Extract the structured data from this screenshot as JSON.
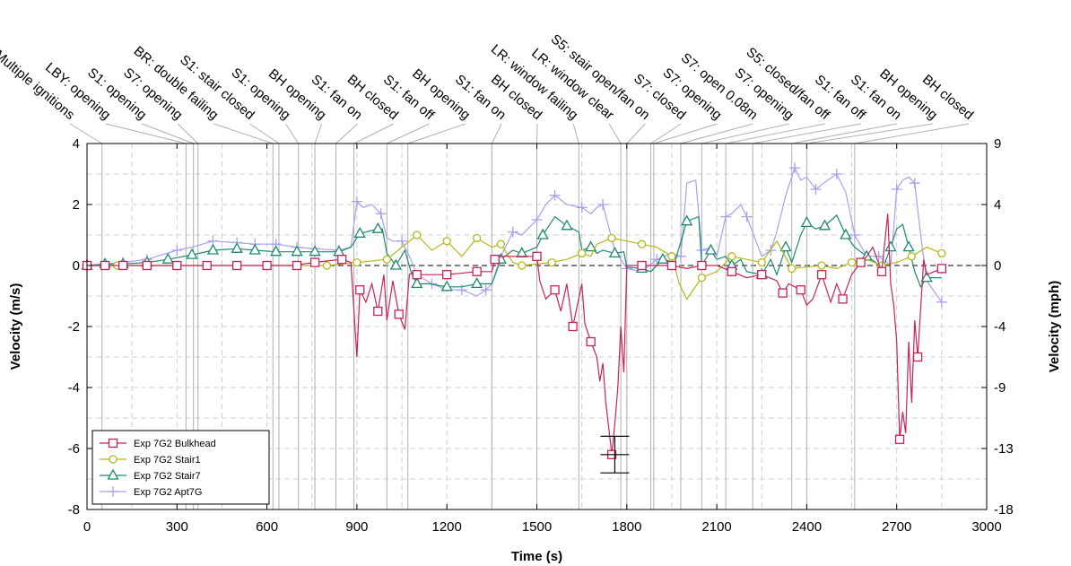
{
  "chart_data": {
    "type": "line",
    "xlabel": "Time (s)",
    "ylabel_left": "Velocity (m/s)",
    "ylabel_right": "Velocity (mph)",
    "xlim": [
      0,
      3000
    ],
    "ylim": [
      -8,
      4
    ],
    "x_ticks": [
      0,
      300,
      600,
      900,
      1200,
      1500,
      1800,
      2100,
      2400,
      2700,
      3000
    ],
    "y_ticks_left": [
      -8,
      -6,
      -4,
      -2,
      0,
      2,
      4
    ],
    "y_ticks_right": [
      "9",
      "4",
      "0",
      "-4",
      "-9",
      "-13",
      "-18"
    ],
    "grid": true,
    "legend_position": "bottom-left",
    "zero_line": "dashed",
    "series": [
      {
        "name": "Exp 7G2 Bulkhead",
        "color": "#c8225a",
        "marker": "square",
        "x": [
          0,
          60,
          120,
          200,
          300,
          400,
          500,
          600,
          700,
          720,
          760,
          800,
          850,
          880,
          900,
          910,
          930,
          950,
          970,
          990,
          1000,
          1020,
          1040,
          1060,
          1075,
          1090,
          1100,
          1200,
          1300,
          1350,
          1360,
          1380,
          1500,
          1510,
          1530,
          1560,
          1580,
          1600,
          1620,
          1650,
          1660,
          1680,
          1700,
          1710,
          1720,
          1730,
          1750,
          1760,
          1770,
          1780,
          1790,
          1800,
          1850,
          1900,
          1950,
          2000,
          2050,
          2100,
          2150,
          2200,
          2250,
          2300,
          2320,
          2340,
          2380,
          2400,
          2420,
          2450,
          2480,
          2500,
          2520,
          2550,
          2580,
          2600,
          2620,
          2650,
          2670,
          2680,
          2690,
          2700,
          2710,
          2720,
          2730,
          2740,
          2750,
          2760,
          2770,
          2790,
          2800,
          2850
        ],
        "y": [
          0,
          0,
          0,
          0,
          0,
          0,
          0,
          0,
          0,
          0.05,
          0.1,
          0.15,
          0.2,
          0.1,
          -3.0,
          -0.8,
          -1.2,
          -0.6,
          -1.5,
          -0.3,
          -1.8,
          -0.5,
          -1.6,
          -2.1,
          -0.3,
          -0.2,
          -0.3,
          -0.3,
          -0.2,
          -0.2,
          0.2,
          0.3,
          0.3,
          -0.5,
          -1.1,
          -0.8,
          -1.5,
          -0.6,
          -2.0,
          -0.6,
          -1.9,
          -2.5,
          -3.0,
          -3.8,
          -3.2,
          -4.5,
          -6.2,
          -5.2,
          -4.0,
          -2.0,
          -3.5,
          0,
          0,
          0,
          0,
          -0.1,
          0,
          0,
          -0.2,
          -0.4,
          -0.3,
          -0.5,
          -0.9,
          -0.6,
          -0.8,
          -1.3,
          -1.1,
          -0.3,
          -1.2,
          -0.6,
          -1.1,
          -0.3,
          0.1,
          0.3,
          0.6,
          -0.2,
          1.7,
          -0.6,
          -1.3,
          -2.5,
          -5.7,
          -4.8,
          -5.5,
          -2.5,
          -4.5,
          -1.8,
          -3.0,
          0.2,
          -0.3,
          -0.1
        ]
      },
      {
        "name": "Exp 7G2 Stair1",
        "color": "#b5b81c",
        "marker": "circle",
        "x": [
          0,
          100,
          200,
          300,
          400,
          500,
          600,
          700,
          800,
          900,
          1000,
          1050,
          1100,
          1150,
          1200,
          1250,
          1300,
          1350,
          1380,
          1420,
          1450,
          1500,
          1550,
          1600,
          1650,
          1680,
          1700,
          1750,
          1800,
          1850,
          1900,
          1950,
          1975,
          2000,
          2050,
          2100,
          2150,
          2200,
          2250,
          2300,
          2350,
          2400,
          2450,
          2500,
          2550,
          2600,
          2650,
          2700,
          2750,
          2800,
          2850
        ],
        "y": [
          0,
          0,
          0,
          0,
          0,
          0,
          0,
          0,
          0,
          0.1,
          0.2,
          0.6,
          1.0,
          0.5,
          0.8,
          0.3,
          0.9,
          0.6,
          0.7,
          0.1,
          0.0,
          0.05,
          0.1,
          0.2,
          0.4,
          0.3,
          0.7,
          0.9,
          0.8,
          0.7,
          0.6,
          0.3,
          -0.6,
          -1.1,
          -0.4,
          -0.2,
          0.3,
          0.2,
          0.1,
          0.8,
          -0.1,
          -0.05,
          0.0,
          -0.1,
          0.1,
          0.2,
          0.0,
          0.1,
          0.3,
          0.6,
          0.4
        ]
      },
      {
        "name": "Exp 7G2 Stair7",
        "color": "#1e8a6e",
        "marker": "triangle",
        "x": [
          0,
          60,
          120,
          200,
          270,
          350,
          420,
          500,
          560,
          630,
          700,
          760,
          840,
          880,
          910,
          970,
          985,
          1000,
          1030,
          1060,
          1080,
          1100,
          1140,
          1200,
          1250,
          1300,
          1350,
          1380,
          1420,
          1450,
          1500,
          1520,
          1560,
          1600,
          1640,
          1650,
          1680,
          1700,
          1720,
          1760,
          1790,
          1800,
          1850,
          1880,
          1920,
          1960,
          2000,
          2040,
          2050,
          2080,
          2100,
          2130,
          2150,
          2180,
          2200,
          2250,
          2280,
          2300,
          2330,
          2350,
          2380,
          2400,
          2430,
          2460,
          2500,
          2530,
          2560,
          2600,
          2630,
          2650,
          2680,
          2700,
          2720,
          2740,
          2760,
          2780,
          2800,
          2850
        ],
        "y": [
          0,
          0.05,
          0.05,
          0.1,
          0.2,
          0.35,
          0.5,
          0.55,
          0.5,
          0.45,
          0.45,
          0.45,
          0.45,
          0.6,
          1.05,
          1.2,
          1.2,
          0.4,
          0.0,
          0.5,
          -0.2,
          -0.6,
          -0.6,
          -0.7,
          -0.7,
          -0.6,
          -0.6,
          0.2,
          0.5,
          0.4,
          0.6,
          1.0,
          1.6,
          1.3,
          1.1,
          0.5,
          0.6,
          0.4,
          0.5,
          0.4,
          0.45,
          -0.05,
          -0.1,
          -0.2,
          0.2,
          0.1,
          1.45,
          1.6,
          0.0,
          0.5,
          0.2,
          0.3,
          0.0,
          0.2,
          -0.2,
          -0.3,
          0.2,
          -0.3,
          0.6,
          0.1,
          1.0,
          1.4,
          1.2,
          1.3,
          1.65,
          1.0,
          0.6,
          0.3,
          0.1,
          -0.2,
          0.6,
          1.2,
          1.35,
          0.6,
          -0.2,
          -0.7,
          -0.4,
          -0.4
        ]
      },
      {
        "name": "Exp 7G2 Apt7G",
        "color": "#a8a0f0",
        "marker": "plus",
        "x": [
          0,
          60,
          120,
          200,
          300,
          350,
          420,
          500,
          560,
          630,
          700,
          760,
          840,
          880,
          900,
          920,
          950,
          980,
          1000,
          1020,
          1050,
          1080,
          1100,
          1150,
          1200,
          1250,
          1300,
          1330,
          1350,
          1380,
          1420,
          1450,
          1500,
          1530,
          1560,
          1600,
          1650,
          1680,
          1700,
          1720,
          1760,
          1800,
          1850,
          1900,
          1950,
          1980,
          2000,
          2030,
          2050,
          2080,
          2100,
          2130,
          2150,
          2180,
          2200,
          2250,
          2280,
          2300,
          2330,
          2360,
          2380,
          2400,
          2430,
          2470,
          2500,
          2530,
          2560,
          2600,
          2640,
          2680,
          2700,
          2720,
          2740,
          2760,
          2780,
          2800,
          2850
        ],
        "y": [
          0,
          0.05,
          0.1,
          0.2,
          0.5,
          0.6,
          0.8,
          0.75,
          0.7,
          0.7,
          0.6,
          0.55,
          0.5,
          0.6,
          2.1,
          1.9,
          2.0,
          1.7,
          0.9,
          0.8,
          0.8,
          0.2,
          -0.3,
          -0.6,
          -0.8,
          -0.8,
          -1.0,
          -0.8,
          -0.6,
          0.3,
          1.1,
          1.0,
          1.5,
          2.0,
          2.3,
          2.0,
          1.9,
          1.7,
          1.9,
          2.0,
          0.5,
          -0.1,
          -0.2,
          0.2,
          0.4,
          0.3,
          2.7,
          2.8,
          0.5,
          0.6,
          0.3,
          1.6,
          1.7,
          2.0,
          1.6,
          0.3,
          0.5,
          1.1,
          2.3,
          3.2,
          2.8,
          2.9,
          2.5,
          2.8,
          3.0,
          2.4,
          1.0,
          0.3,
          0.3,
          0.0,
          2.5,
          2.8,
          2.9,
          2.7,
          1.0,
          -0.5,
          -1.2
        ]
      }
    ],
    "error_bar": {
      "x": 1760,
      "y_low": -6.8,
      "y_mid": -6.2,
      "y_high": -5.6
    },
    "annotations": [
      {
        "label": "Multiple ignitions",
        "x": 50
      },
      {
        "label": "LBY: opening",
        "x": 330
      },
      {
        "label": "S1: opening",
        "x": 355
      },
      {
        "label": "S7: opening",
        "x": 370
      },
      {
        "label": "BR: double failing",
        "x": 620
      },
      {
        "label": "S1: stair closed",
        "x": 640
      },
      {
        "label": "S1: opening",
        "x": 705
      },
      {
        "label": "BH opening",
        "x": 760
      },
      {
        "label": "S1: fan on",
        "x": 830
      },
      {
        "label": "BH closed",
        "x": 890
      },
      {
        "label": "S1: fan off",
        "x": 1000
      },
      {
        "label": "BH opening",
        "x": 1070
      },
      {
        "label": "S1: fan on",
        "x": 1350
      },
      {
        "label": "BH closed",
        "x": 1500
      },
      {
        "label": "LR: window failing",
        "x": 1640
      },
      {
        "label": "LR: window clear",
        "x": 1780
      },
      {
        "label": "S5: stair open/fan on",
        "x": 1800
      },
      {
        "label": "S7: closed",
        "x": 1880
      },
      {
        "label": "S7: opening",
        "x": 1890
      },
      {
        "label": "S7: open 0.08m",
        "x": 1980
      },
      {
        "label": "S7: opening",
        "x": 2050
      },
      {
        "label": "S5: closed/fan off",
        "x": 2130
      },
      {
        "label": "S1: fan off",
        "x": 2220
      },
      {
        "label": "S1: fan on",
        "x": 2350
      },
      {
        "label": "BH opening",
        "x": 2400
      },
      {
        "label": "BH closed",
        "x": 2560
      }
    ]
  }
}
